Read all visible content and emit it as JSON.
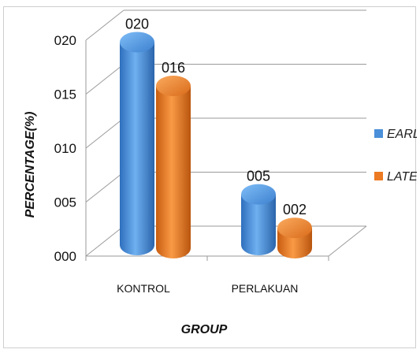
{
  "chart_data": {
    "type": "bar",
    "categories": [
      "KONTROL",
      "PERLAKUAN"
    ],
    "series": [
      {
        "name": "EARLY",
        "values": [
          0.2,
          0.05
        ],
        "labels": [
          "020",
          "005"
        ],
        "color": "#4a8fd9"
      },
      {
        "name": "LATE",
        "values": [
          0.16,
          0.02
        ],
        "labels": [
          "016",
          "002"
        ],
        "color": "#ec7a22"
      }
    ],
    "ylabel": "PERCENTAGE(%)",
    "xlabel": "GROUP",
    "ylim": [
      0,
      0.2
    ],
    "yticks": [
      0,
      0.05,
      0.1,
      0.15,
      0.2
    ],
    "ytick_labels": [
      "000",
      "005",
      "010",
      "015",
      "020"
    ],
    "grid": true,
    "legend": "right",
    "style": "3d-cylinder"
  }
}
